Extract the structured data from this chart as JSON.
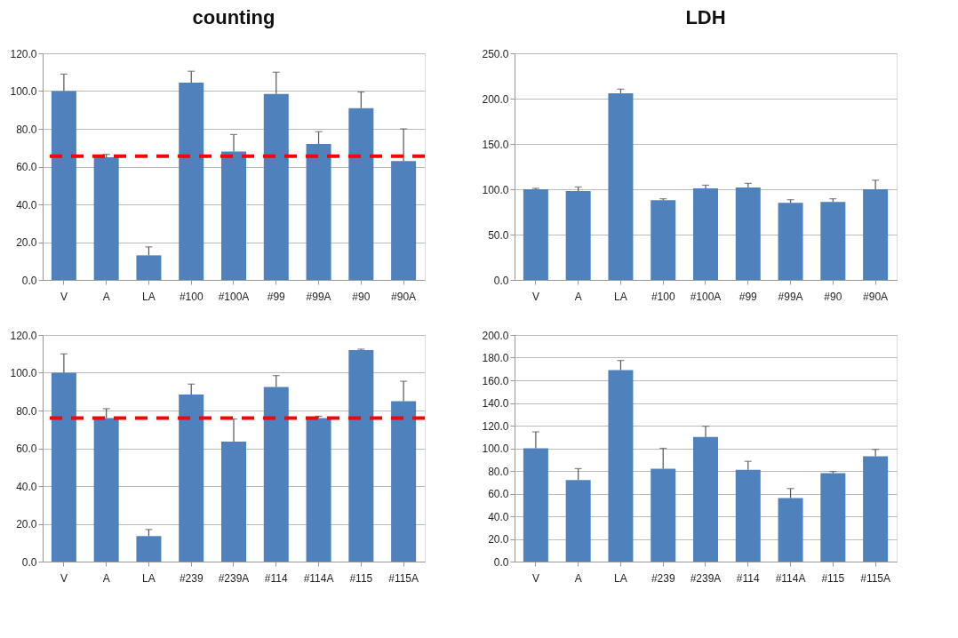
{
  "chart_data": [
    {
      "type": "bar",
      "title": "counting",
      "categories": [
        "V",
        "A",
        "LA",
        "#100",
        "#100A",
        "#99",
        "#99A",
        "#90",
        "#90A"
      ],
      "color": "#4f81bd",
      "values": [
        100,
        65,
        13,
        104.5,
        68,
        98.5,
        72,
        91,
        63
      ],
      "errors": [
        [
          100,
          109
        ],
        [
          65,
          66.5
        ],
        [
          13,
          17.5
        ],
        [
          104.5,
          110.5
        ],
        [
          68,
          77
        ],
        [
          98.5,
          110
        ],
        [
          72,
          78.5
        ],
        [
          91,
          99.5
        ],
        [
          63,
          80
        ]
      ],
      "ylim": [
        0,
        120
      ],
      "yticks": [
        {
          "value": 0,
          "label": "0.0"
        },
        {
          "value": 20,
          "label": "20.0"
        },
        {
          "value": 40,
          "label": "40.0"
        },
        {
          "value": 60,
          "label": "60.0"
        },
        {
          "value": 80,
          "label": "80.0"
        },
        {
          "value": 100,
          "label": "100.0"
        },
        {
          "value": 120,
          "label": "120.0"
        }
      ],
      "ref_lines": [
        {
          "axis": "y",
          "value": 65.5,
          "color": "#ff0000",
          "line_style": "dashed"
        }
      ],
      "grid": "y"
    },
    {
      "type": "bar",
      "title": "LDH",
      "categories": [
        "V",
        "A",
        "LA",
        "#100",
        "#100A",
        "#99",
        "#99A",
        "#90",
        "#90A"
      ],
      "color": "#4f81bd",
      "values": [
        100,
        98,
        206,
        88,
        101,
        102,
        85,
        86,
        100
      ],
      "errors": [
        [
          100,
          101
        ],
        [
          98,
          102.5
        ],
        [
          206,
          210.5
        ],
        [
          88,
          89.5
        ],
        [
          101,
          104.5
        ],
        [
          102,
          106.5
        ],
        [
          85,
          88.5
        ],
        [
          86,
          89.5
        ],
        [
          100,
          110
        ]
      ],
      "ylim": [
        0,
        250
      ],
      "yticks": [
        {
          "value": 0,
          "label": "0.0"
        },
        {
          "value": 50,
          "label": "50.0"
        },
        {
          "value": 100,
          "label": "100.0"
        },
        {
          "value": 150,
          "label": "150.0"
        },
        {
          "value": 200,
          "label": "200.0"
        },
        {
          "value": 250,
          "label": "250.0"
        }
      ],
      "grid": "y"
    },
    {
      "type": "bar",
      "categories": [
        "V",
        "A",
        "LA",
        "#239",
        "#239A",
        "#114",
        "#114A",
        "#115",
        "#115A"
      ],
      "color": "#4f81bd",
      "values": [
        100,
        76,
        13.5,
        88.5,
        63.5,
        92.5,
        76,
        112,
        85
      ],
      "errors": [
        [
          100,
          110
        ],
        [
          76,
          81
        ],
        [
          13.5,
          17
        ],
        [
          88.5,
          94
        ],
        [
          63.5,
          75.5
        ],
        [
          92.5,
          98.5
        ],
        [
          76,
          77
        ],
        [
          112,
          112.5
        ],
        [
          85,
          95.5
        ]
      ],
      "ylim": [
        0,
        120
      ],
      "yticks": [
        {
          "value": 0,
          "label": "0.0"
        },
        {
          "value": 20,
          "label": "20.0"
        },
        {
          "value": 40,
          "label": "40.0"
        },
        {
          "value": 60,
          "label": "60.0"
        },
        {
          "value": 80,
          "label": "80.0"
        },
        {
          "value": 100,
          "label": "100.0"
        },
        {
          "value": 120,
          "label": "120.0"
        }
      ],
      "ref_lines": [
        {
          "axis": "y",
          "value": 76,
          "color": "#ff0000",
          "line_style": "dashed"
        }
      ],
      "grid": "y"
    },
    {
      "type": "bar",
      "categories": [
        "V",
        "A",
        "LA",
        "#239",
        "#239A",
        "#114",
        "#114A",
        "#115",
        "#115A"
      ],
      "color": "#4f81bd",
      "values": [
        100,
        72,
        169,
        82,
        110,
        81,
        56,
        78,
        93
      ],
      "errors": [
        [
          100,
          114.5
        ],
        [
          72,
          82
        ],
        [
          169,
          177.5
        ],
        [
          82,
          100
        ],
        [
          110,
          119.5
        ],
        [
          81,
          88.5
        ],
        [
          56,
          64.5
        ],
        [
          78,
          79.5
        ],
        [
          93,
          99
        ]
      ],
      "ylim": [
        0,
        200
      ],
      "yticks": [
        {
          "value": 0,
          "label": "0.0"
        },
        {
          "value": 20,
          "label": "20.0"
        },
        {
          "value": 40,
          "label": "40.0"
        },
        {
          "value": 60,
          "label": "60.0"
        },
        {
          "value": 80,
          "label": "80.0"
        },
        {
          "value": 100,
          "label": "100.0"
        },
        {
          "value": 120,
          "label": "120.0"
        },
        {
          "value": 140,
          "label": "140.0"
        },
        {
          "value": 160,
          "label": "160.0"
        },
        {
          "value": 180,
          "label": "180.0"
        },
        {
          "value": 200,
          "label": "200.0"
        }
      ],
      "grid": "y"
    }
  ]
}
